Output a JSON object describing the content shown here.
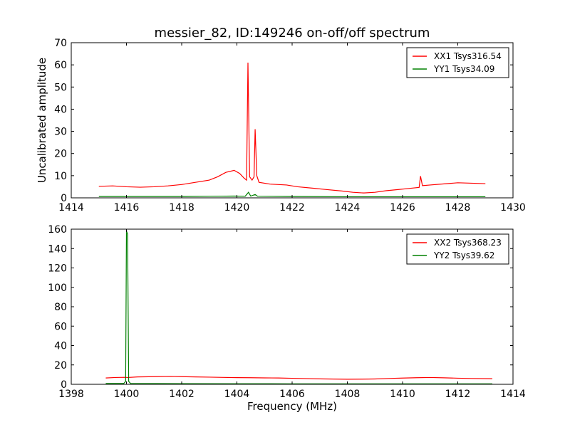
{
  "chart_data": [
    {
      "type": "line",
      "title": "messier_82, ID:149246 on-off/off spectrum",
      "xlabel": "",
      "ylabel": "Uncalibrated amplitude",
      "xlim": [
        1414,
        1430
      ],
      "ylim": [
        0,
        70
      ],
      "xticks": [
        1414,
        1416,
        1418,
        1420,
        1422,
        1424,
        1426,
        1428,
        1430
      ],
      "yticks": [
        0,
        10,
        20,
        30,
        40,
        50,
        60,
        70
      ],
      "legend_position": "top-right",
      "series": [
        {
          "name": "XX1 Tsys316.54",
          "color": "#ff0000",
          "points": [
            [
              1415.0,
              5.2
            ],
            [
              1415.5,
              5.4
            ],
            [
              1416.0,
              5.0
            ],
            [
              1416.5,
              4.8
            ],
            [
              1417.0,
              5.0
            ],
            [
              1417.5,
              5.4
            ],
            [
              1418.0,
              6.0
            ],
            [
              1418.5,
              7.0
            ],
            [
              1419.0,
              8.0
            ],
            [
              1419.3,
              9.5
            ],
            [
              1419.6,
              11.5
            ],
            [
              1419.9,
              12.4
            ],
            [
              1420.1,
              11.0
            ],
            [
              1420.25,
              9.0
            ],
            [
              1420.35,
              8.0
            ],
            [
              1420.4,
              61.0
            ],
            [
              1420.46,
              9.5
            ],
            [
              1420.55,
              8.0
            ],
            [
              1420.62,
              9.5
            ],
            [
              1420.66,
              31.0
            ],
            [
              1420.72,
              10.0
            ],
            [
              1420.8,
              7.0
            ],
            [
              1421.2,
              6.2
            ],
            [
              1421.8,
              5.8
            ],
            [
              1422.2,
              5.0
            ],
            [
              1422.8,
              4.3
            ],
            [
              1423.2,
              3.8
            ],
            [
              1423.8,
              3.1
            ],
            [
              1424.2,
              2.5
            ],
            [
              1424.6,
              2.2
            ],
            [
              1425.0,
              2.5
            ],
            [
              1425.4,
              3.2
            ],
            [
              1425.8,
              3.7
            ],
            [
              1426.2,
              4.2
            ],
            [
              1426.6,
              4.7
            ],
            [
              1426.65,
              9.8
            ],
            [
              1426.72,
              5.5
            ],
            [
              1427.0,
              5.8
            ],
            [
              1427.5,
              6.3
            ],
            [
              1428.0,
              6.8
            ],
            [
              1428.5,
              6.6
            ],
            [
              1429.0,
              6.4
            ]
          ]
        },
        {
          "name": "YY1 Tsys34.09",
          "color": "#008000",
          "points": [
            [
              1415.0,
              0.6
            ],
            [
              1416.0,
              0.6
            ],
            [
              1417.0,
              0.6
            ],
            [
              1418.0,
              0.6
            ],
            [
              1419.0,
              0.7
            ],
            [
              1419.9,
              0.8
            ],
            [
              1420.3,
              0.7
            ],
            [
              1420.42,
              2.5
            ],
            [
              1420.5,
              0.8
            ],
            [
              1420.66,
              1.5
            ],
            [
              1420.75,
              0.7
            ],
            [
              1422.0,
              0.6
            ],
            [
              1424.0,
              0.5
            ],
            [
              1426.0,
              0.5
            ],
            [
              1427.0,
              0.5
            ],
            [
              1429.0,
              0.5
            ]
          ]
        }
      ]
    },
    {
      "type": "line",
      "title": "",
      "xlabel": "Frequency (MHz)",
      "ylabel": "",
      "xlim": [
        1398,
        1414
      ],
      "ylim": [
        0,
        160
      ],
      "xticks": [
        1398,
        1400,
        1402,
        1404,
        1406,
        1408,
        1410,
        1412,
        1414
      ],
      "yticks": [
        0,
        20,
        40,
        60,
        80,
        100,
        120,
        140,
        160
      ],
      "legend_position": "top-right",
      "series": [
        {
          "name": "XX2 Tsys368.23",
          "color": "#ff0000",
          "points": [
            [
              1399.25,
              6.5
            ],
            [
              1399.6,
              7.0
            ],
            [
              1399.95,
              7.2
            ],
            [
              1400.05,
              7.0
            ],
            [
              1400.4,
              7.6
            ],
            [
              1400.8,
              7.8
            ],
            [
              1401.2,
              8.0
            ],
            [
              1401.6,
              8.1
            ],
            [
              1402.0,
              7.9
            ],
            [
              1402.5,
              7.6
            ],
            [
              1403.0,
              7.4
            ],
            [
              1403.5,
              7.1
            ],
            [
              1404.0,
              6.9
            ],
            [
              1404.5,
              6.8
            ],
            [
              1405.0,
              6.6
            ],
            [
              1405.5,
              6.5
            ],
            [
              1406.0,
              6.2
            ],
            [
              1406.5,
              5.9
            ],
            [
              1407.0,
              5.6
            ],
            [
              1407.5,
              5.4
            ],
            [
              1408.0,
              5.2
            ],
            [
              1408.5,
              5.3
            ],
            [
              1409.0,
              5.5
            ],
            [
              1409.5,
              6.0
            ],
            [
              1410.0,
              6.4
            ],
            [
              1410.5,
              6.8
            ],
            [
              1411.0,
              7.0
            ],
            [
              1411.5,
              6.7
            ],
            [
              1412.0,
              6.3
            ],
            [
              1412.5,
              6.0
            ],
            [
              1413.25,
              5.8
            ]
          ]
        },
        {
          "name": "YY2 Tsys39.62",
          "color": "#008000",
          "points": [
            [
              1399.25,
              0.8
            ],
            [
              1399.9,
              0.8
            ],
            [
              1399.97,
              3.0
            ],
            [
              1400.0,
              158.0
            ],
            [
              1400.04,
              155.0
            ],
            [
              1400.08,
              3.0
            ],
            [
              1400.15,
              0.8
            ],
            [
              1402.0,
              0.7
            ],
            [
              1404.0,
              0.6
            ],
            [
              1406.0,
              0.5
            ],
            [
              1408.0,
              0.5
            ],
            [
              1410.0,
              0.5
            ],
            [
              1412.0,
              0.5
            ],
            [
              1413.25,
              0.5
            ]
          ]
        }
      ]
    }
  ]
}
